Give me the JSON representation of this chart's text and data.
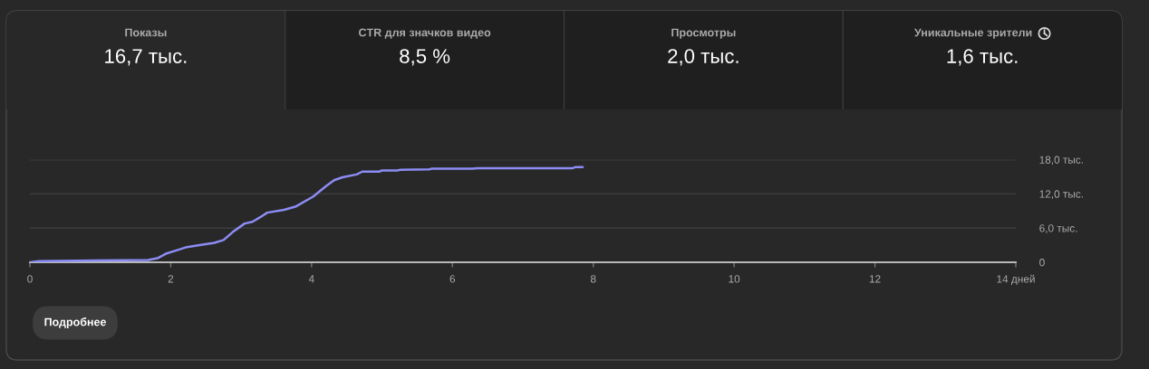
{
  "chart_data": [
    {
      "type": "other",
      "annotations": [
        "Показы",
        "16,7 тыс.",
        "CTR для значков видео",
        "8,5 %",
        "Просмотры",
        "2,0 тыс.",
        "Уникальные зрители",
        "1,6 тыс."
      ]
    },
    {
      "type": "line",
      "x": [
        0,
        0.13,
        0.95,
        1.68,
        1.81,
        1.93,
        2.06,
        2.21,
        2.41,
        2.62,
        2.75,
        2.88,
        3.05,
        3.16,
        3.27,
        3.37,
        3.61,
        3.78,
        4.02,
        4.21,
        4.32,
        4.44,
        4.64,
        4.72,
        4.96,
        5.0,
        5.22,
        5.26,
        5.67,
        5.71,
        6.29,
        6.35,
        7.71,
        7.75,
        7.85
      ],
      "series": [
        {
          "color": "#8c8cf4",
          "values": [
            0,
            0.2,
            0.3,
            0.4,
            0.7,
            1.5,
            2.0,
            2.6,
            3.0,
            3.4,
            3.9,
            5.3,
            6.8,
            7.1,
            7.9,
            8.7,
            9.2,
            9.8,
            11.5,
            13.4,
            14.4,
            14.9,
            15.4,
            15.9,
            15.9,
            16.1,
            16.1,
            16.2,
            16.3,
            16.4,
            16.4,
            16.5,
            16.5,
            16.7,
            16.7
          ]
        }
      ],
      "xlim": [
        0,
        14
      ],
      "xticks": [
        0,
        2,
        4,
        6,
        8,
        10,
        12,
        {
          "value": 14,
          "label": "14 дней"
        }
      ],
      "ylim": [
        0,
        18
      ],
      "yticks": [
        0,
        {
          "value": 6,
          "label": "6,0 тыс."
        },
        {
          "value": 12,
          "label": "12,0 тыс."
        },
        {
          "value": 18,
          "label": "18,0 тыс."
        }
      ],
      "grid": "y",
      "annotations": [
        "Подробнее"
      ]
    }
  ]
}
